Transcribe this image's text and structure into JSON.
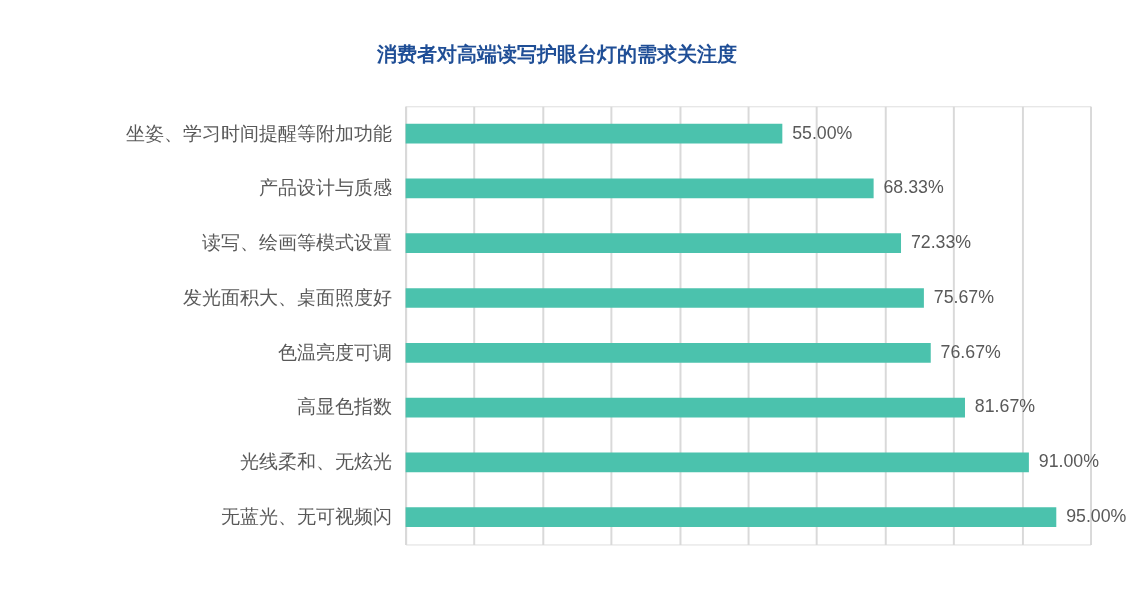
{
  "chart_data": {
    "type": "bar",
    "orientation": "horizontal",
    "title": "消费者对高端读写护眼台灯的需求关注度",
    "categories": [
      "坐姿、学习时间提醒等附加功能",
      "产品设计与质感",
      "读写、绘画等模式设置",
      "发光面积大、桌面照度好",
      "色温亮度可调",
      "高显色指数",
      "光线柔和、无炫光",
      "无蓝光、无可视频闪"
    ],
    "values": [
      55.0,
      68.33,
      72.33,
      75.67,
      76.67,
      81.67,
      91.0,
      95.0
    ],
    "value_labels": [
      "55.00%",
      "68.33%",
      "72.33%",
      "75.67%",
      "76.67%",
      "81.67%",
      "91.00%",
      "95.00%"
    ],
    "color": "#4bc2ad",
    "xlim": [
      0,
      100
    ],
    "xticks": [
      {
        "value": 0,
        "label": null
      },
      {
        "value": 10,
        "label": null
      },
      {
        "value": 20,
        "label": null
      },
      {
        "value": 30,
        "label": null
      },
      {
        "value": 40,
        "label": null
      },
      {
        "value": 50,
        "label": null
      },
      {
        "value": 60,
        "label": null
      },
      {
        "value": 70,
        "label": null
      },
      {
        "value": 80,
        "label": null
      },
      {
        "value": 90,
        "label": null
      },
      {
        "value": 100,
        "label": null
      }
    ],
    "grid": "x",
    "tick_labels": "y"
  }
}
